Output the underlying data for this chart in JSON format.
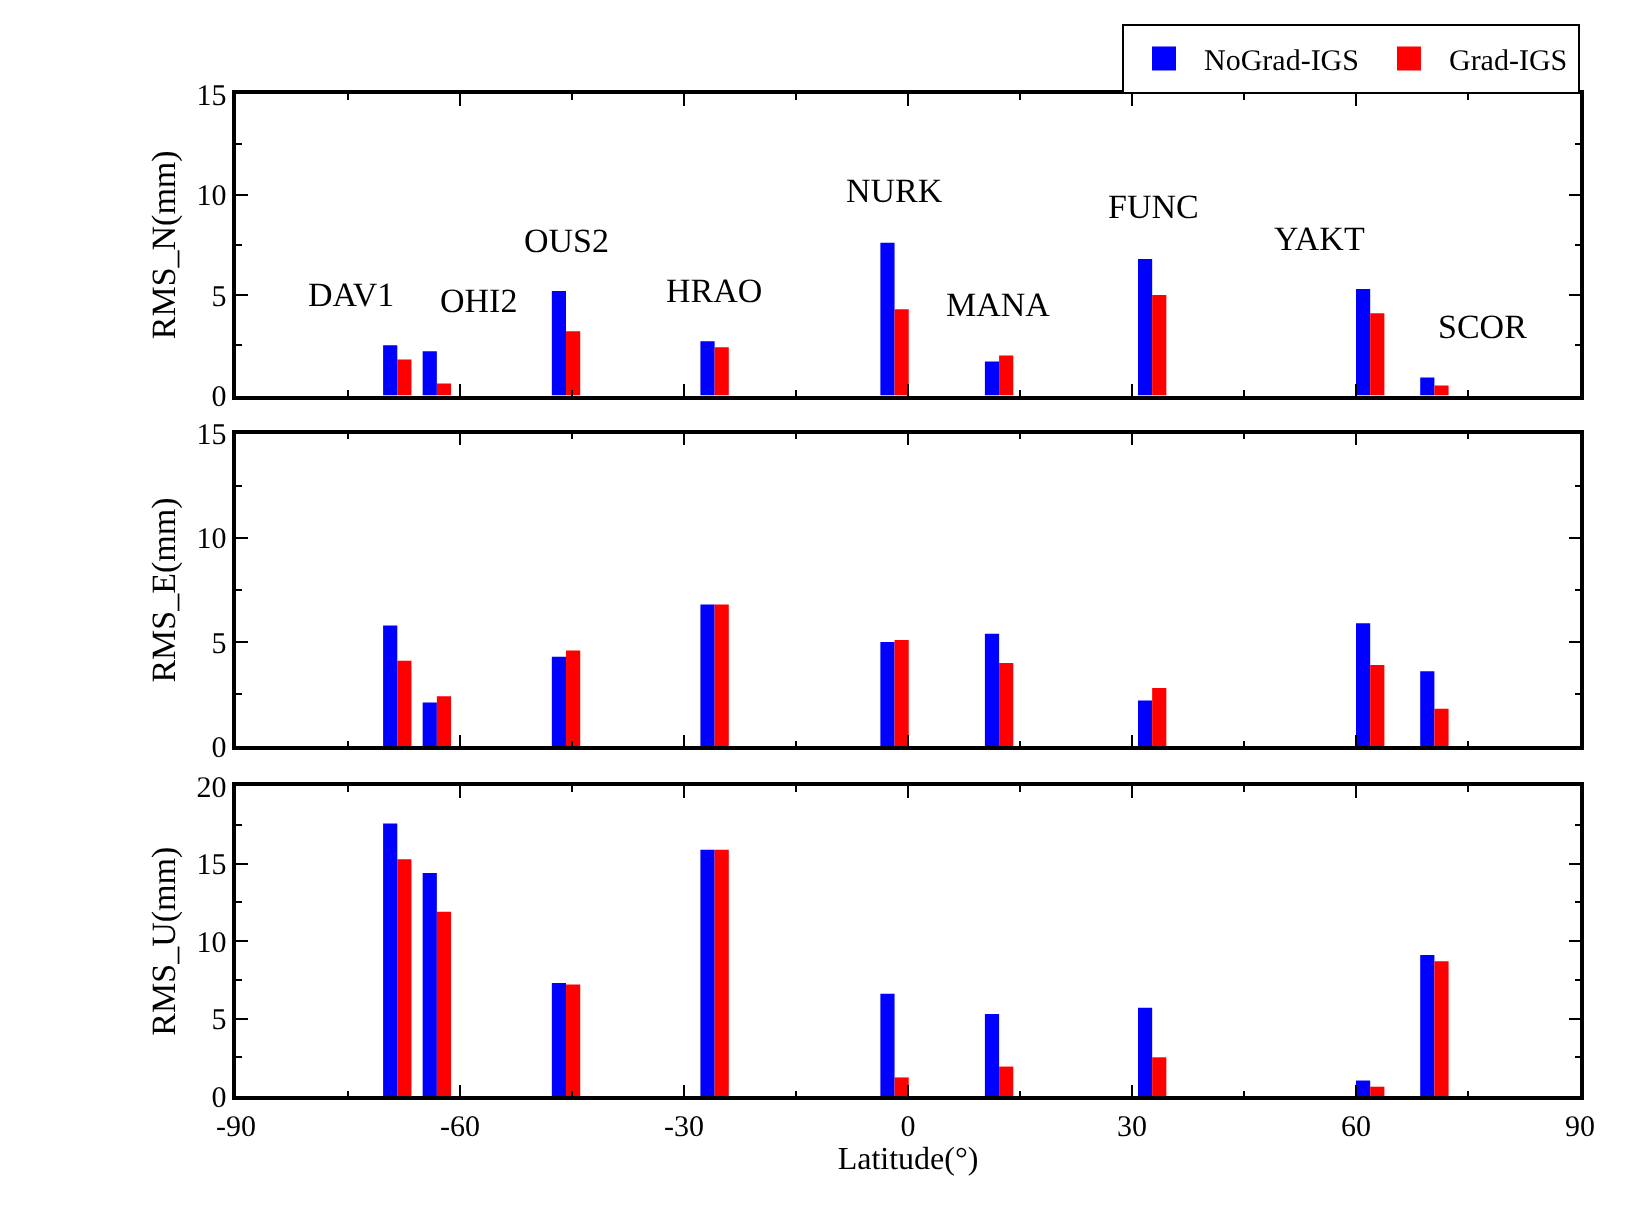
{
  "chart_data": [
    {
      "type": "bar",
      "ylabel": "RMS_N(mm)",
      "x": [
        -68.4,
        -63.1,
        -45.8,
        -25.9,
        -1.8,
        12.2,
        32.7,
        61.9,
        70.5
      ],
      "xlim": [
        -90,
        90
      ],
      "xticks": [
        -90,
        -60,
        -30,
        0,
        30,
        60,
        90
      ],
      "ylim": [
        0,
        15
      ],
      "yticks": [
        0,
        5,
        10,
        15
      ],
      "tick_labels": "y",
      "legend": "top right",
      "series": [
        {
          "name": "NoGrad-IGS",
          "color": "#0000ff",
          "values": [
            2.5,
            2.2,
            5.2,
            2.7,
            7.6,
            1.7,
            6.8,
            5.3,
            0.9
          ]
        },
        {
          "name": "Grad-IGS",
          "color": "#ff0000",
          "values": [
            1.8,
            0.6,
            3.2,
            2.4,
            4.3,
            2.0,
            5.0,
            4.1,
            0.5
          ]
        }
      ],
      "annotations": [
        {
          "text": "DAV1",
          "x": -68.4,
          "y": 2.5
        },
        {
          "text": "OHI2",
          "x": -63.1,
          "y": 2.2
        },
        {
          "text": "OUS2",
          "x": -45.8,
          "y": 5.2
        },
        {
          "text": "HRAO",
          "x": -25.9,
          "y": 2.7
        },
        {
          "text": "NURK",
          "x": -1.8,
          "y": 7.6
        },
        {
          "text": "MANA",
          "x": 12.2,
          "y": 2.0
        },
        {
          "text": "FUNC",
          "x": 32.7,
          "y": 6.8
        },
        {
          "text": "YAKT",
          "x": 61.9,
          "y": 5.3
        },
        {
          "text": "SCOR",
          "x": 70.5,
          "y": 0.9
        }
      ]
    },
    {
      "type": "bar",
      "ylabel": "RMS_E(mm)",
      "x": [
        -68.4,
        -63.1,
        -45.8,
        -25.9,
        -1.8,
        12.2,
        32.7,
        61.9,
        70.5
      ],
      "xlim": [
        -90,
        90
      ],
      "xticks": [
        -90,
        -60,
        -30,
        0,
        30,
        60,
        90
      ],
      "ylim": [
        0,
        15
      ],
      "yticks": [
        0,
        5,
        10,
        15
      ],
      "tick_labels": "y",
      "series": [
        {
          "color": "#0000ff",
          "values": [
            5.8,
            2.1,
            4.3,
            6.8,
            5.0,
            5.4,
            2.2,
            5.9,
            3.6
          ]
        },
        {
          "color": "#ff0000",
          "values": [
            4.1,
            2.4,
            4.6,
            6.8,
            5.1,
            4.0,
            2.8,
            3.9,
            1.8
          ]
        }
      ]
    },
    {
      "type": "bar",
      "ylabel": "RMS_U(mm)",
      "xlabel": "Latitude(°)",
      "x": [
        -68.4,
        -63.1,
        -45.8,
        -25.9,
        -1.8,
        12.2,
        32.7,
        61.9,
        70.5
      ],
      "xlim": [
        -90,
        90
      ],
      "xticks": [
        -90,
        -60,
        -30,
        0,
        30,
        60,
        90
      ],
      "ylim": [
        0,
        20
      ],
      "yticks": [
        0,
        5,
        10,
        15,
        20
      ],
      "series": [
        {
          "color": "#0000ff",
          "values": [
            17.6,
            14.4,
            7.3,
            15.9,
            6.6,
            5.3,
            5.7,
            1.0,
            9.1
          ]
        },
        {
          "color": "#ff0000",
          "values": [
            15.3,
            11.9,
            7.2,
            15.9,
            1.2,
            1.9,
            2.5,
            0.6,
            8.7
          ]
        }
      ]
    }
  ]
}
